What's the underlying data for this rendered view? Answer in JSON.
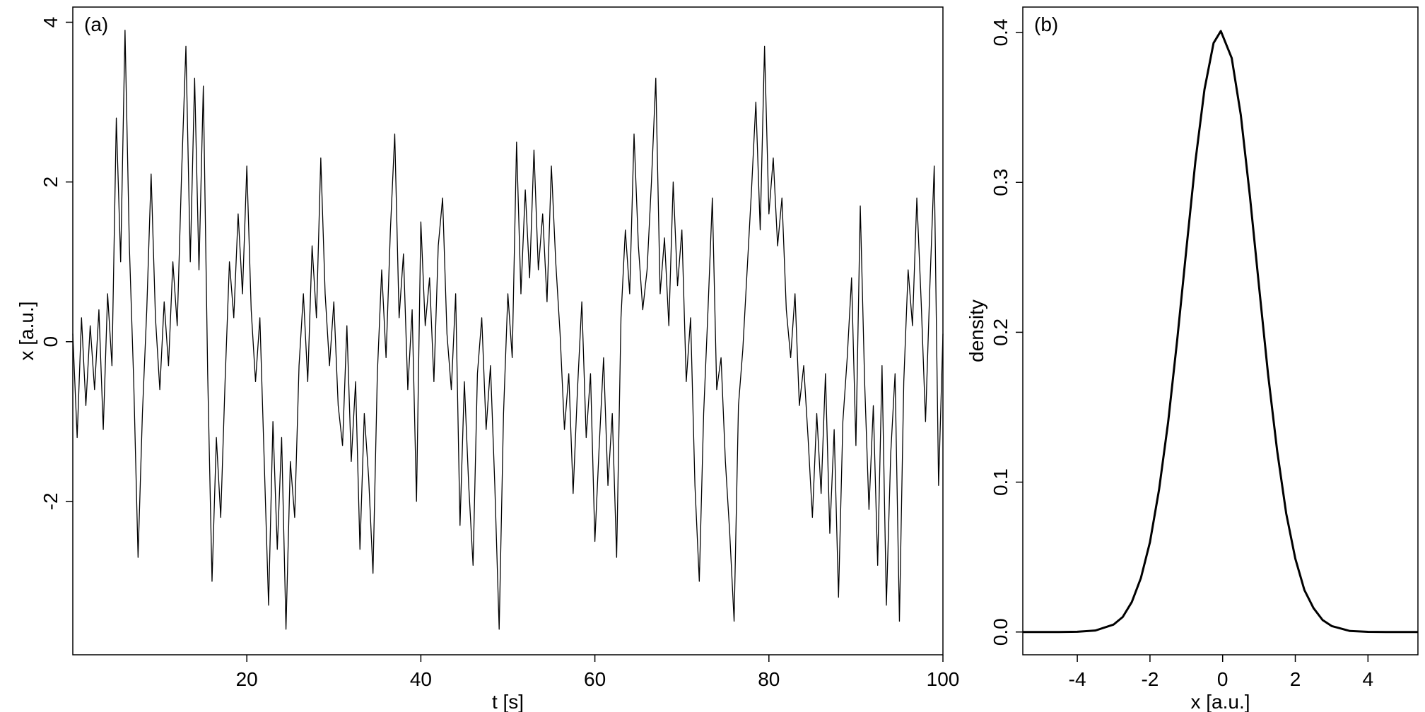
{
  "chart_data": [
    {
      "type": "line",
      "title": "(a)",
      "xlabel": "t [s]",
      "ylabel": "x [a.u.]",
      "xlim": [
        0,
        100
      ],
      "ylim": [
        -3.92,
        4.19
      ],
      "xticks": [
        20,
        40,
        60,
        80,
        100
      ],
      "yticks": [
        -2,
        0,
        2,
        4
      ],
      "x": [
        0,
        0.5,
        1,
        1.5,
        2,
        2.5,
        3,
        3.5,
        4,
        4.5,
        5,
        5.5,
        6,
        6.5,
        7,
        7.5,
        8,
        8.5,
        9,
        9.5,
        10,
        10.5,
        11,
        11.5,
        12,
        12.5,
        13,
        13.5,
        14,
        14.5,
        15,
        15.5,
        16,
        16.5,
        17,
        17.5,
        18,
        18.5,
        19,
        19.5,
        20,
        20.5,
        21,
        21.5,
        22,
        22.5,
        23,
        23.5,
        24,
        24.5,
        25,
        25.5,
        26,
        26.5,
        27,
        27.5,
        28,
        28.5,
        29,
        29.5,
        30,
        30.5,
        31,
        31.5,
        32,
        32.5,
        33,
        33.5,
        34,
        34.5,
        35,
        35.5,
        36,
        36.5,
        37,
        37.5,
        38,
        38.5,
        39,
        39.5,
        40,
        40.5,
        41,
        41.5,
        42,
        42.5,
        43,
        43.5,
        44,
        44.5,
        45,
        45.5,
        46,
        46.5,
        47,
        47.5,
        48,
        48.5,
        49,
        49.5,
        50,
        50.5,
        51,
        51.5,
        52,
        52.5,
        53,
        53.5,
        54,
        54.5,
        55,
        55.5,
        56,
        56.5,
        57,
        57.5,
        58,
        58.5,
        59,
        59.5,
        60,
        60.5,
        61,
        61.5,
        62,
        62.5,
        63,
        63.5,
        64,
        64.5,
        65,
        65.5,
        66,
        66.5,
        67,
        67.5,
        68,
        68.5,
        69,
        69.5,
        70,
        70.5,
        71,
        71.5,
        72,
        72.5,
        73,
        73.5,
        74,
        74.5,
        75,
        75.5,
        76,
        76.5,
        77,
        77.5,
        78,
        78.5,
        79,
        79.5,
        80,
        80.5,
        81,
        81.5,
        82,
        82.5,
        83,
        83.5,
        84,
        84.5,
        85,
        85.5,
        86,
        86.5,
        87,
        87.5,
        88,
        88.5,
        89,
        89.5,
        90,
        90.5,
        91,
        91.5,
        92,
        92.5,
        93,
        93.5,
        94,
        94.5,
        95,
        95.5,
        96,
        96.5,
        97,
        97.5,
        98,
        98.5,
        99,
        99.5,
        100
      ],
      "series": [
        {
          "color": "#000000",
          "values": [
            0.1,
            -1.2,
            0.3,
            -0.8,
            0.2,
            -0.6,
            0.4,
            -1.1,
            0.6,
            -0.3,
            2.8,
            1.0,
            3.9,
            1.2,
            -0.5,
            -2.7,
            -0.9,
            0.4,
            2.1,
            0.3,
            -0.6,
            0.5,
            -0.3,
            1.0,
            0.2,
            2.1,
            3.7,
            1.0,
            3.3,
            0.9,
            3.2,
            -0.4,
            -3.0,
            -1.2,
            -2.2,
            -0.5,
            1.0,
            0.3,
            1.6,
            0.6,
            2.2,
            0.4,
            -0.5,
            0.3,
            -1.5,
            -3.3,
            -1.0,
            -2.6,
            -1.2,
            -3.6,
            -1.5,
            -2.2,
            -0.3,
            0.6,
            -0.5,
            1.2,
            0.3,
            2.3,
            0.6,
            -0.3,
            0.5,
            -0.8,
            -1.3,
            0.2,
            -1.5,
            -0.5,
            -2.6,
            -0.9,
            -1.7,
            -2.9,
            -0.4,
            0.9,
            -0.2,
            1.4,
            2.6,
            0.3,
            1.1,
            -0.6,
            0.4,
            -2.0,
            1.5,
            0.2,
            0.8,
            -0.5,
            1.2,
            1.8,
            0.1,
            -0.6,
            0.6,
            -2.3,
            -0.5,
            -1.8,
            -2.8,
            -0.4,
            0.3,
            -1.1,
            -0.3,
            -1.8,
            -3.6,
            -0.9,
            0.6,
            -0.2,
            2.5,
            0.6,
            1.9,
            0.8,
            2.4,
            0.9,
            1.6,
            0.5,
            2.2,
            1.0,
            0.1,
            -1.1,
            -0.4,
            -1.9,
            -0.6,
            0.5,
            -1.2,
            -0.4,
            -2.5,
            -1.3,
            -0.2,
            -1.8,
            -0.9,
            -2.7,
            0.3,
            1.4,
            0.6,
            2.6,
            1.2,
            0.4,
            0.9,
            2.0,
            3.3,
            0.6,
            1.3,
            0.2,
            2.0,
            0.7,
            1.4,
            -0.5,
            0.3,
            -1.8,
            -3.0,
            -0.9,
            0.4,
            1.8,
            -0.6,
            -0.2,
            -1.5,
            -2.4,
            -3.5,
            -0.8,
            -0.1,
            0.9,
            1.9,
            3.0,
            1.4,
            3.7,
            1.6,
            2.3,
            1.2,
            1.8,
            0.4,
            -0.2,
            0.6,
            -0.8,
            -0.3,
            -1.2,
            -2.2,
            -0.9,
            -1.9,
            -0.4,
            -2.4,
            -1.1,
            -3.2,
            -1.0,
            -0.2,
            0.8,
            -1.3,
            1.7,
            -0.5,
            -2.1,
            -0.8,
            -2.8,
            -0.3,
            -3.3,
            -1.4,
            -0.4,
            -3.5,
            -0.5,
            0.9,
            0.2,
            1.8,
            0.5,
            -1.0,
            0.7,
            2.2,
            -1.8,
            0.1
          ]
        }
      ]
    },
    {
      "type": "line",
      "title": "(b)",
      "xlabel": "x [a.u.]",
      "ylabel": "density",
      "xlim": [
        -5.5,
        5.375
      ],
      "ylim": [
        -0.0152,
        0.417
      ],
      "xticks": [
        -4,
        -2,
        0,
        2,
        4
      ],
      "yticks": [
        {
          "value": 0,
          "label": "0.0"
        },
        0.1,
        0.2,
        0.3,
        0.4
      ],
      "x": [
        -5.5,
        -5,
        -4.5,
        -4,
        -3.5,
        -3,
        -2.75,
        -2.5,
        -2.25,
        -2,
        -1.75,
        -1.5,
        -1.25,
        -1,
        -0.75,
        -0.5,
        -0.25,
        -0.05,
        0.25,
        0.5,
        0.75,
        1,
        1.25,
        1.5,
        1.75,
        2,
        2.25,
        2.5,
        2.75,
        3,
        3.5,
        4,
        4.5,
        5,
        5.375
      ],
      "series": [
        {
          "color": "#000000",
          "values": [
            0,
            0,
            2e-05,
            0.0002,
            0.001,
            0.005,
            0.01,
            0.02,
            0.036,
            0.06,
            0.095,
            0.14,
            0.195,
            0.255,
            0.314,
            0.362,
            0.393,
            0.401,
            0.383,
            0.345,
            0.291,
            0.231,
            0.172,
            0.121,
            0.079,
            0.049,
            0.028,
            0.016,
            0.008,
            0.004,
            0.0007,
            0.0001,
            0,
            0,
            0
          ]
        }
      ]
    }
  ]
}
